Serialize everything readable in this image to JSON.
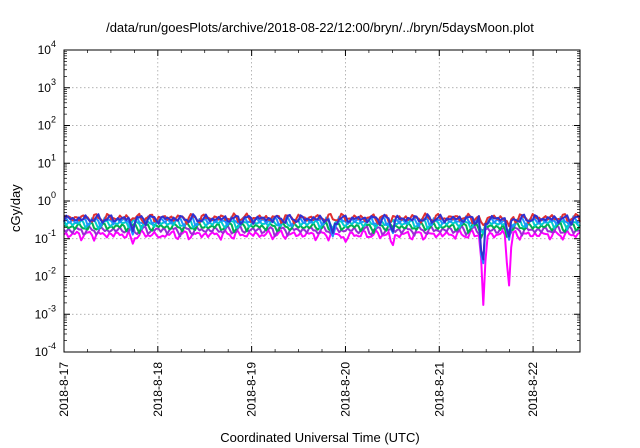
{
  "chart_data": {
    "type": "line",
    "title": "/data/run/goesPlots/archive/2018-08-22/12:00/bryn/../bryn/5daysMoon.plot",
    "xlabel": "Coordinated Universal Time (UTC)",
    "ylabel": "cGy/day",
    "y_scale": "log",
    "ylim": [
      0.0001,
      10000
    ],
    "y_ticks": [
      {
        "value": 10000,
        "base": "10",
        "exp": "4"
      },
      {
        "value": 1000,
        "base": "10",
        "exp": "3"
      },
      {
        "value": 100,
        "base": "10",
        "exp": "2"
      },
      {
        "value": 10,
        "base": "10",
        "exp": "1"
      },
      {
        "value": 1,
        "base": "10",
        "exp": "0"
      },
      {
        "value": 0.1,
        "base": "10",
        "exp": "-1"
      },
      {
        "value": 0.01,
        "base": "10",
        "exp": "-2"
      },
      {
        "value": 0.001,
        "base": "10",
        "exp": "-3"
      },
      {
        "value": 0.0001,
        "base": "10",
        "exp": "-4"
      }
    ],
    "x_range_days": [
      "2018-8-17",
      "2018-8-22 12:00"
    ],
    "x_tick_labels": [
      "2018-8-17",
      "2018-8-18",
      "2018-8-19",
      "2018-8-20",
      "2018-8-21",
      "2018-8-22"
    ],
    "grid": true,
    "legend": "none",
    "series": [
      {
        "color": "#ff00ff",
        "baseline": 0.13,
        "dips": [
          [
            0.73,
            0.07
          ],
          [
            3.5,
            0.06
          ],
          [
            4.47,
            0.0015
          ],
          [
            4.74,
            0.004
          ],
          [
            1.02,
            0.1
          ],
          [
            3.0,
            0.08
          ]
        ]
      },
      {
        "color": "#9b2bd6",
        "baseline": 0.17,
        "dips": []
      },
      {
        "color": "#00b050",
        "baseline": 0.21,
        "dips": [
          [
            4.45,
            0.1
          ],
          [
            4.72,
            0.11
          ]
        ]
      },
      {
        "color": "#00cccc",
        "baseline": 0.26,
        "dips": [
          [
            4.46,
            0.12
          ],
          [
            4.73,
            0.13
          ]
        ]
      },
      {
        "color": "#1e90ff",
        "baseline": 0.3,
        "dips": [
          [
            0.73,
            0.12
          ],
          [
            2.86,
            0.1
          ],
          [
            3.5,
            0.12
          ],
          [
            4.46,
            0.01
          ],
          [
            4.74,
            0.08
          ]
        ]
      },
      {
        "color": "#e03030",
        "baseline": 0.36,
        "dips": [
          [
            4.46,
            0.2
          ],
          [
            4.74,
            0.2
          ]
        ]
      },
      {
        "color": "#3030d0",
        "baseline": 0.34,
        "dips": [
          [
            0.73,
            0.15
          ],
          [
            2.86,
            0.12
          ],
          [
            3.5,
            0.14
          ],
          [
            4.46,
            0.012
          ],
          [
            4.74,
            0.1
          ]
        ]
      }
    ]
  }
}
